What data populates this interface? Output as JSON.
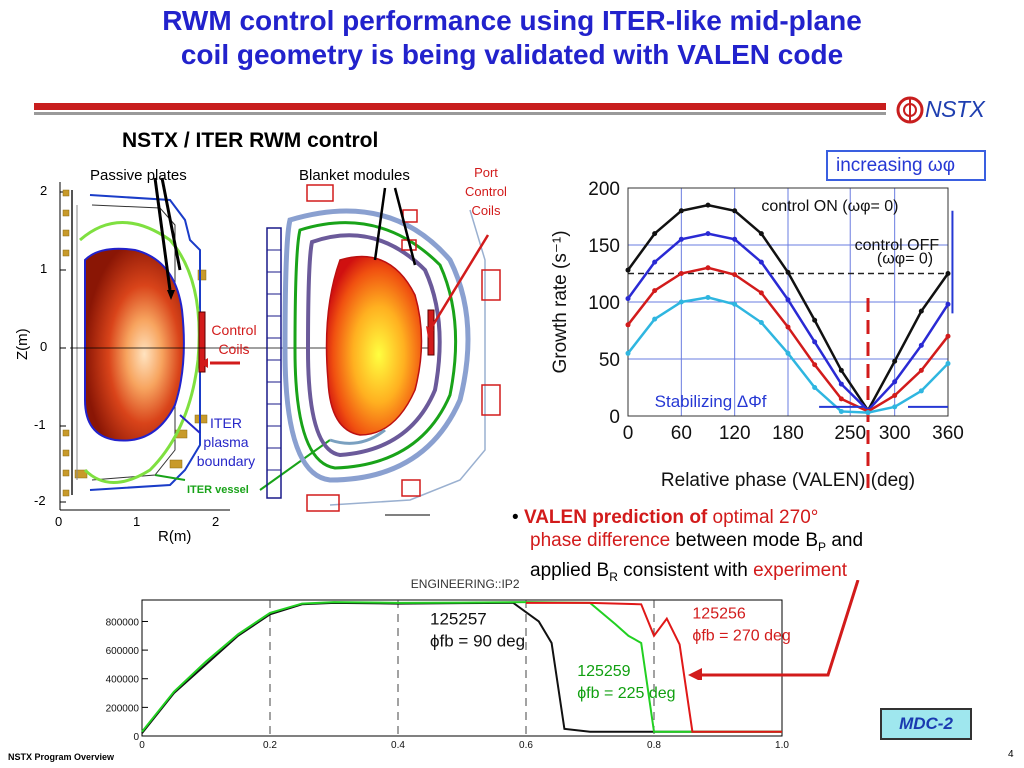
{
  "slide": {
    "title_line1": "RWM control performance using ITER-like mid-plane",
    "title_line2": "coil geometry is being validated with VALEN code",
    "section_title": "NSTX / ITER RWM control",
    "logo_text": "NSTX",
    "footer": "NSTX Program Overview",
    "page_number": "4",
    "badge": "MDC-2"
  },
  "left_figure": {
    "passive_plates": "Passive plates",
    "blanket_modules": "Blanket modules",
    "port_control_coils": [
      "Port",
      "Control",
      "Coils"
    ],
    "control_coils": [
      "Control",
      "Coils"
    ],
    "iter_boundary": [
      "ITER",
      "plasma",
      "boundary"
    ],
    "iter_vessel": "ITER vessel",
    "ylabel": "Z(m)",
    "xlabel": "R(m)",
    "yticks": [
      "2",
      "1",
      "0",
      "-1",
      "-2"
    ],
    "xticks": [
      "0",
      "1",
      "2"
    ]
  },
  "bullet": {
    "marker": "•",
    "part1": "VALEN prediction of",
    "part2": " optimal 270°",
    "part3": "phase difference",
    "part4": " between mode B",
    "part4_sub": "P",
    "part5": " and",
    "part6": "applied B",
    "part6_sub": "R",
    "part7": " consistent with ",
    "part8": "experiment"
  },
  "chart_data": [
    {
      "type": "line",
      "title": "",
      "xlabel": "Relative phase (VALEN) (deg)",
      "ylabel": "Growth rate (s⁻¹)",
      "xlim": [
        0,
        360
      ],
      "ylim": [
        0,
        200
      ],
      "xticks": [
        0,
        60,
        120,
        180,
        250,
        300,
        360
      ],
      "yticks": [
        0,
        50,
        100,
        150,
        200
      ],
      "grid": true,
      "annotations": [
        "increasing ωφ",
        "control ON (ωφ= 0)",
        "control OFF",
        "(ωφ= 0)",
        "Stabilizing ΔΦf"
      ],
      "reference_lines": [
        {
          "type": "horizontal",
          "value": 125,
          "style": "dashed"
        },
        {
          "type": "vertical",
          "value": 270,
          "style": "dashed",
          "color": "#d21b1b"
        }
      ],
      "series": [
        {
          "color": "#111111",
          "x": [
            0,
            30,
            60,
            90,
            120,
            150,
            180,
            210,
            240,
            270,
            300,
            330,
            360
          ],
          "y": [
            128,
            160,
            180,
            185,
            180,
            160,
            126,
            84,
            40,
            5,
            48,
            92,
            125
          ]
        },
        {
          "color": "#2a2ad4",
          "x": [
            0,
            30,
            60,
            90,
            120,
            150,
            180,
            210,
            240,
            270,
            300,
            330,
            360
          ],
          "y": [
            103,
            135,
            155,
            160,
            155,
            135,
            102,
            65,
            28,
            5,
            30,
            62,
            98
          ]
        },
        {
          "color": "#d21b1b",
          "x": [
            0,
            30,
            60,
            90,
            120,
            150,
            180,
            210,
            240,
            270,
            300,
            330,
            360
          ],
          "y": [
            80,
            110,
            125,
            130,
            124,
            108,
            78,
            45,
            15,
            4,
            18,
            40,
            70
          ]
        },
        {
          "color": "#2fb6e0",
          "x": [
            0,
            30,
            60,
            90,
            120,
            150,
            180,
            210,
            240,
            270,
            300,
            330,
            360
          ],
          "y": [
            55,
            85,
            100,
            104,
            98,
            82,
            55,
            25,
            4,
            3,
            8,
            22,
            46
          ]
        }
      ]
    },
    {
      "type": "line",
      "title": "ENGINEERING::IP2",
      "xlim": [
        0,
        1.0
      ],
      "ylim": [
        0,
        950000
      ],
      "xticks": [
        0,
        0.2,
        0.4,
        0.6,
        0.8,
        1.0
      ],
      "xtick_labels": [
        "0",
        "0.2",
        "0.4",
        "0.6",
        "0.8",
        "1.0"
      ],
      "yticks": [
        0,
        200000,
        400000,
        600000,
        800000
      ],
      "ytick_labels": [
        "0",
        "200000",
        "400000",
        "600000",
        "800000"
      ],
      "vlines": [
        0.2,
        0.4,
        0.6,
        0.8
      ],
      "series": [
        {
          "label": "125257",
          "phase": "ϕfb = 90 deg",
          "color": "#111111",
          "x": [
            0,
            0.05,
            0.1,
            0.15,
            0.2,
            0.25,
            0.3,
            0.4,
            0.5,
            0.58,
            0.62,
            0.64,
            0.66,
            0.7,
            0.8,
            0.9,
            1.0
          ],
          "y": [
            20000,
            300000,
            500000,
            700000,
            850000,
            920000,
            930000,
            925000,
            928000,
            930000,
            800000,
            650000,
            50000,
            30000,
            30000,
            30000,
            30000
          ]
        },
        {
          "label": "125259",
          "phase": "ϕfb = 225 deg",
          "color": "#22d022",
          "x": [
            0,
            0.05,
            0.1,
            0.15,
            0.2,
            0.25,
            0.3,
            0.4,
            0.5,
            0.6,
            0.7,
            0.74,
            0.76,
            0.78,
            0.8,
            0.9,
            1.0
          ],
          "y": [
            30000,
            310000,
            520000,
            710000,
            860000,
            925000,
            935000,
            930000,
            932000,
            935000,
            930000,
            780000,
            700000,
            650000,
            30000,
            30000,
            30000
          ]
        },
        {
          "label": "125256",
          "phase": "ϕfb = 270 deg",
          "color": "#e01818",
          "x": [
            0.6,
            0.7,
            0.78,
            0.8,
            0.82,
            0.84,
            0.86,
            0.9,
            1.0
          ],
          "y": [
            930000,
            930000,
            920000,
            700000,
            820000,
            640000,
            30000,
            30000,
            30000
          ]
        }
      ]
    }
  ]
}
